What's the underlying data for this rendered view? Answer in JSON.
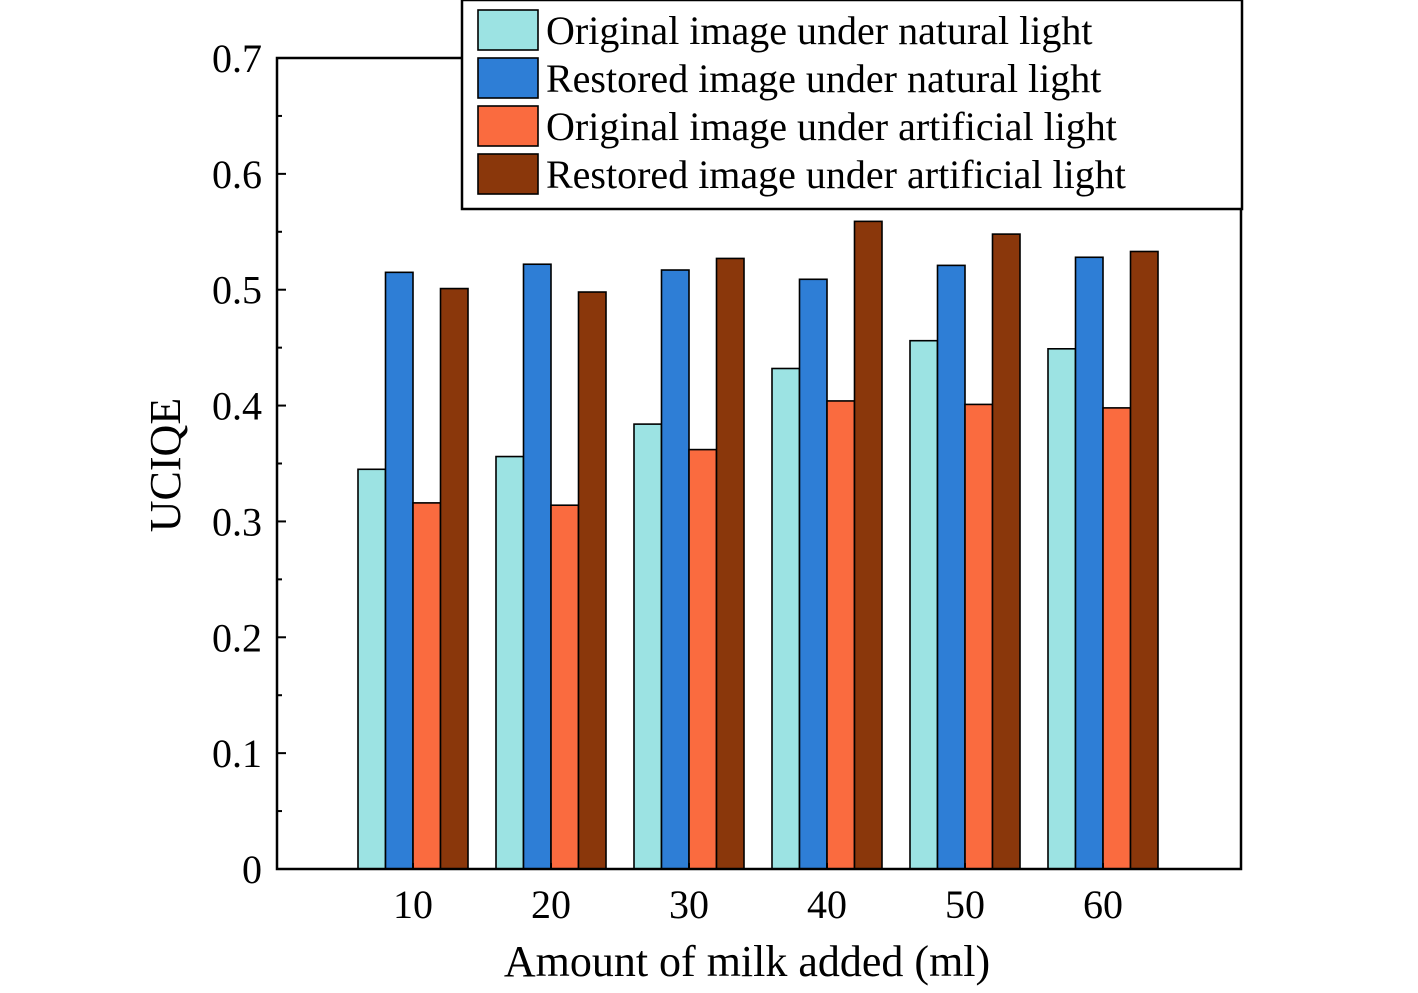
{
  "chart_data": {
    "type": "bar",
    "xlabel": "Amount of milk added (ml)",
    "ylabel": "UCIQE",
    "ylim": [
      0,
      0.7
    ],
    "yticks": [
      "0",
      "0.1",
      "0.2",
      "0.3",
      "0.4",
      "0.5",
      "0.6",
      "0.7"
    ],
    "categories": [
      "10",
      "20",
      "30",
      "40",
      "50",
      "60"
    ],
    "legend_position": "top-right",
    "grid": false,
    "series": [
      {
        "name": "Original image under natural light",
        "color": "#9ce3e3",
        "values": [
          0.345,
          0.356,
          0.384,
          0.432,
          0.456,
          0.449
        ]
      },
      {
        "name": "Restored image under natural light",
        "color": "#2e7ed6",
        "values": [
          0.515,
          0.522,
          0.517,
          0.509,
          0.521,
          0.528
        ]
      },
      {
        "name": "Original image under artificial light",
        "color": "#fa6b3f",
        "values": [
          0.316,
          0.314,
          0.362,
          0.404,
          0.401,
          0.398
        ]
      },
      {
        "name": "Restored image under artificial light",
        "color": "#8a370b",
        "values": [
          0.501,
          0.498,
          0.527,
          0.559,
          0.548,
          0.533
        ]
      }
    ]
  }
}
